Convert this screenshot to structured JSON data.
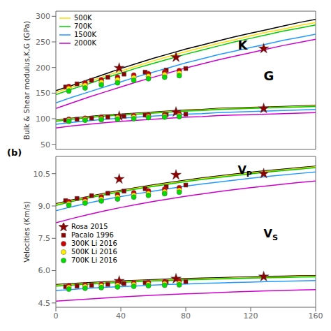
{
  "chart_data": [
    {
      "type": "line",
      "ylabel": "Bulk & Shear modulus,K,G (GPa)",
      "x": [
        0,
        10,
        20,
        30,
        40,
        50,
        60,
        70,
        80,
        90,
        100,
        110,
        120,
        130,
        140,
        150,
        160
      ],
      "xlim": [
        0,
        160
      ],
      "xticks": [
        0,
        40,
        80,
        120,
        160
      ],
      "ylim": [
        40,
        310
      ],
      "yticks": [
        50,
        100,
        150,
        200,
        250,
        300
      ],
      "grid": false,
      "legend": "upper left",
      "tick_labels": "y",
      "annotations": [
        "K",
        "G"
      ],
      "series": [
        {
          "color": "#000000",
          "values": [
            155,
            165,
            176,
            187,
            198,
            208,
            218,
            227,
            236,
            244,
            252,
            260,
            267,
            274,
            281,
            288,
            294
          ]
        },
        {
          "color": "#000000",
          "values": [
            97,
            101,
            104,
            107,
            109,
            111,
            113,
            115,
            117,
            118,
            120,
            121,
            122,
            123,
            124,
            125,
            126
          ]
        },
        {
          "name": "500K",
          "color": "#ffdd00",
          "values": [
            151,
            162,
            172,
            183,
            193,
            203,
            213,
            222,
            231,
            239,
            247,
            254,
            262,
            269,
            275,
            282,
            288
          ]
        },
        {
          "color": "#ffdd00",
          "values": [
            96,
            100,
            103,
            106,
            108,
            110,
            112,
            114,
            116,
            117,
            119,
            120,
            121,
            122,
            123,
            124,
            125
          ]
        },
        {
          "name": "700K",
          "color": "#00cc00",
          "values": [
            147,
            158,
            168,
            179,
            189,
            199,
            208,
            217,
            226,
            234,
            242,
            250,
            257,
            264,
            271,
            277,
            283
          ]
        },
        {
          "color": "#00cc00",
          "values": [
            95,
            99,
            102,
            105,
            107,
            109,
            111,
            113,
            115,
            116,
            118,
            119,
            120,
            121,
            122,
            123,
            124
          ]
        },
        {
          "name": "1500K",
          "color": "#2299ff",
          "values": [
            131,
            142,
            152,
            162,
            172,
            182,
            191,
            200,
            209,
            217,
            225,
            232,
            239,
            246,
            253,
            259,
            265
          ]
        },
        {
          "color": "#2299ff",
          "values": [
            89,
            93,
            96,
            99,
            101,
            103,
            105,
            107,
            109,
            110,
            112,
            113,
            114,
            115,
            116,
            117,
            118
          ]
        },
        {
          "name": "2000K",
          "color": "#cc00cc",
          "values": [
            120,
            131,
            142,
            152,
            162,
            172,
            181,
            190,
            199,
            207,
            215,
            222,
            229,
            236,
            243,
            249,
            255
          ]
        },
        {
          "color": "#cc00cc",
          "values": [
            82,
            86,
            89,
            92,
            95,
            97,
            99,
            101,
            103,
            104,
            106,
            107,
            108,
            109,
            110,
            111,
            112
          ]
        },
        {
          "type": "scatter",
          "marker": "star",
          "color": "darkred",
          "x": [
            39,
            74,
            128
          ],
          "values": [
            199,
            220,
            237
          ]
        },
        {
          "type": "scatter",
          "marker": "square",
          "color": "darkred",
          "x": [
            6,
            13,
            22,
            32,
            42,
            55,
            68,
            80
          ],
          "values": [
            162,
            168,
            175,
            181,
            187,
            191,
            195,
            198
          ]
        },
        {
          "type": "scatter",
          "marker": "circle",
          "color": "#cc0000",
          "x": [
            8,
            18,
            28,
            38,
            48,
            57,
            67,
            76
          ],
          "values": [
            163,
            170,
            176,
            181,
            185,
            188,
            191,
            194
          ]
        },
        {
          "type": "scatter",
          "marker": "circle",
          "color": "#ffee00",
          "x": [
            8,
            18,
            28,
            38,
            48,
            57,
            67,
            76
          ],
          "values": [
            159,
            165,
            171,
            176,
            180,
            183,
            186,
            189
          ]
        },
        {
          "type": "scatter",
          "marker": "circle",
          "color": "#00dd00",
          "x": [
            8,
            18,
            28,
            38,
            48,
            57,
            67,
            76
          ],
          "values": [
            154,
            160,
            166,
            170,
            175,
            178,
            181,
            184
          ]
        },
        {
          "type": "scatter",
          "marker": "star",
          "color": "darkred",
          "x": [
            39,
            74,
            128
          ],
          "values": [
            105,
            113,
            120
          ]
        },
        {
          "type": "scatter",
          "marker": "square",
          "color": "darkred",
          "x": [
            6,
            13,
            22,
            32,
            42,
            55,
            68,
            80
          ],
          "values": [
            97,
            99,
            101,
            103,
            105,
            107,
            108,
            109
          ]
        },
        {
          "type": "scatter",
          "marker": "circle",
          "color": "#cc0000",
          "x": [
            8,
            18,
            28,
            38,
            48,
            57,
            67,
            76
          ],
          "values": [
            99,
            101,
            103,
            104,
            106,
            107,
            108,
            109
          ]
        },
        {
          "type": "scatter",
          "marker": "circle",
          "color": "#ffee00",
          "x": [
            8,
            18,
            28,
            38,
            48,
            57,
            67,
            76
          ],
          "values": [
            97,
            99,
            100,
            102,
            103,
            104,
            105,
            106
          ]
        },
        {
          "type": "scatter",
          "marker": "circle",
          "color": "#00dd00",
          "x": [
            8,
            18,
            28,
            38,
            48,
            57,
            67,
            76
          ],
          "values": [
            95,
            97,
            98,
            99,
            100,
            102,
            103,
            104
          ]
        }
      ]
    },
    {
      "type": "line",
      "ylabel": "Velocities (Km/s)",
      "x": [
        0,
        10,
        20,
        30,
        40,
        50,
        60,
        70,
        80,
        90,
        100,
        110,
        120,
        130,
        140,
        150,
        160
      ],
      "xlim": [
        0,
        160
      ],
      "xticks": [
        0,
        40,
        80,
        120,
        160
      ],
      "ylim": [
        4.3,
        11.3
      ],
      "yticks": [
        4.5,
        {
          "value": 6,
          "label": "6.0"
        },
        7.5,
        {
          "value": 9,
          "label": "9.0"
        },
        10.5
      ],
      "grid": false,
      "legend": "center left",
      "annotations": [
        "VP",
        "VS",
        "(b)"
      ],
      "series": [
        {
          "color": "#000000",
          "values": [
            9.1,
            9.28,
            9.44,
            9.59,
            9.73,
            9.86,
            9.98,
            10.09,
            10.2,
            10.3,
            10.39,
            10.48,
            10.56,
            10.64,
            10.71,
            10.78,
            10.85
          ]
        },
        {
          "color": "#000000",
          "values": [
            5.35,
            5.4,
            5.44,
            5.48,
            5.52,
            5.55,
            5.58,
            5.61,
            5.63,
            5.65,
            5.67,
            5.69,
            5.71,
            5.73,
            5.74,
            5.76,
            5.77
          ]
        },
        {
          "color": "#ffdd00",
          "values": [
            9.07,
            9.25,
            9.41,
            9.56,
            9.7,
            9.83,
            9.95,
            10.06,
            10.17,
            10.27,
            10.36,
            10.45,
            10.53,
            10.61,
            10.68,
            10.75,
            10.82
          ]
        },
        {
          "color": "#ffdd00",
          "values": [
            5.32,
            5.37,
            5.41,
            5.45,
            5.49,
            5.52,
            5.55,
            5.58,
            5.6,
            5.62,
            5.64,
            5.66,
            5.68,
            5.7,
            5.71,
            5.73,
            5.74
          ]
        },
        {
          "color": "#00cc00",
          "values": [
            9.02,
            9.21,
            9.37,
            9.52,
            9.66,
            9.79,
            9.91,
            10.02,
            10.13,
            10.23,
            10.32,
            10.41,
            10.49,
            10.57,
            10.64,
            10.71,
            10.78
          ]
        },
        {
          "color": "#00cc00",
          "values": [
            5.28,
            5.33,
            5.38,
            5.42,
            5.45,
            5.49,
            5.52,
            5.54,
            5.57,
            5.59,
            5.61,
            5.63,
            5.65,
            5.67,
            5.68,
            5.7,
            5.71
          ]
        },
        {
          "color": "#2299ff",
          "values": [
            8.78,
            8.97,
            9.14,
            9.3,
            9.44,
            9.57,
            9.69,
            9.81,
            9.92,
            10.02,
            10.11,
            10.2,
            10.29,
            10.37,
            10.44,
            10.51,
            10.58
          ]
        },
        {
          "color": "#2299ff",
          "values": [
            5.08,
            5.13,
            5.18,
            5.22,
            5.26,
            5.29,
            5.33,
            5.36,
            5.38,
            5.41,
            5.43,
            5.45,
            5.47,
            5.49,
            5.51,
            5.52,
            5.54
          ]
        },
        {
          "color": "#cc00cc",
          "values": [
            8.22,
            8.42,
            8.6,
            8.77,
            8.93,
            9.07,
            9.21,
            9.33,
            9.45,
            9.56,
            9.66,
            9.76,
            9.85,
            9.93,
            10.01,
            10.09,
            10.16
          ]
        },
        {
          "color": "#cc00cc",
          "values": [
            4.58,
            4.63,
            4.68,
            4.73,
            4.78,
            4.82,
            4.86,
            4.89,
            4.92,
            4.95,
            4.98,
            5.01,
            5.04,
            5.06,
            5.08,
            5.1,
            5.12
          ]
        },
        {
          "type": "scatter",
          "name": "Rosa 2015",
          "marker": "star",
          "color": "darkred",
          "x": [
            39,
            74,
            128
          ],
          "values": [
            10.25,
            10.44,
            10.5
          ]
        },
        {
          "type": "scatter",
          "name": "Pacalo 1996",
          "marker": "square",
          "color": "darkred",
          "x": [
            6,
            13,
            22,
            32,
            42,
            55,
            68,
            80
          ],
          "values": [
            9.25,
            9.35,
            9.48,
            9.59,
            9.69,
            9.8,
            9.89,
            9.97
          ]
        },
        {
          "type": "scatter",
          "name": "300K Li 2016",
          "marker": "circle",
          "color": "#cc0000",
          "x": [
            8,
            18,
            28,
            38,
            48,
            57,
            67,
            76
          ],
          "values": [
            9.2,
            9.31,
            9.42,
            9.52,
            9.61,
            9.7,
            9.78,
            9.85
          ]
        },
        {
          "type": "scatter",
          "name": "500K Li 2016",
          "marker": "circle",
          "color": "#ffee00",
          "x": [
            8,
            18,
            28,
            38,
            48,
            57,
            67,
            76
          ],
          "values": [
            9.1,
            9.21,
            9.31,
            9.41,
            9.5,
            9.58,
            9.66,
            9.73
          ]
        },
        {
          "type": "scatter",
          "name": "700K Li 2016",
          "marker": "circle",
          "color": "#00dd00",
          "x": [
            8,
            18,
            28,
            38,
            48,
            57,
            67,
            76
          ],
          "values": [
            9.03,
            9.13,
            9.23,
            9.32,
            9.41,
            9.49,
            9.57,
            9.64
          ]
        },
        {
          "type": "scatter",
          "marker": "star",
          "color": "darkred",
          "x": [
            39,
            74,
            128
          ],
          "values": [
            5.52,
            5.62,
            5.72
          ]
        },
        {
          "type": "scatter",
          "marker": "square",
          "color": "darkred",
          "x": [
            6,
            13,
            22,
            32,
            42,
            55,
            68,
            80
          ],
          "values": [
            5.25,
            5.28,
            5.32,
            5.36,
            5.4,
            5.44,
            5.47,
            5.49
          ]
        },
        {
          "type": "scatter",
          "marker": "circle",
          "color": "#cc0000",
          "x": [
            8,
            18,
            28,
            38,
            48,
            57,
            67,
            76
          ],
          "values": [
            5.3,
            5.34,
            5.37,
            5.4,
            5.43,
            5.45,
            5.48,
            5.5
          ]
        },
        {
          "type": "scatter",
          "marker": "circle",
          "color": "#ffee00",
          "x": [
            8,
            18,
            28,
            38,
            48,
            57,
            67,
            76
          ],
          "values": [
            5.22,
            5.26,
            5.29,
            5.32,
            5.35,
            5.37,
            5.39,
            5.41
          ]
        },
        {
          "type": "scatter",
          "marker": "circle",
          "color": "#00dd00",
          "x": [
            8,
            18,
            28,
            38,
            48,
            57,
            67,
            76
          ],
          "values": [
            5.14,
            5.18,
            5.21,
            5.24,
            5.27,
            5.3,
            5.32,
            5.34
          ]
        }
      ]
    }
  ]
}
